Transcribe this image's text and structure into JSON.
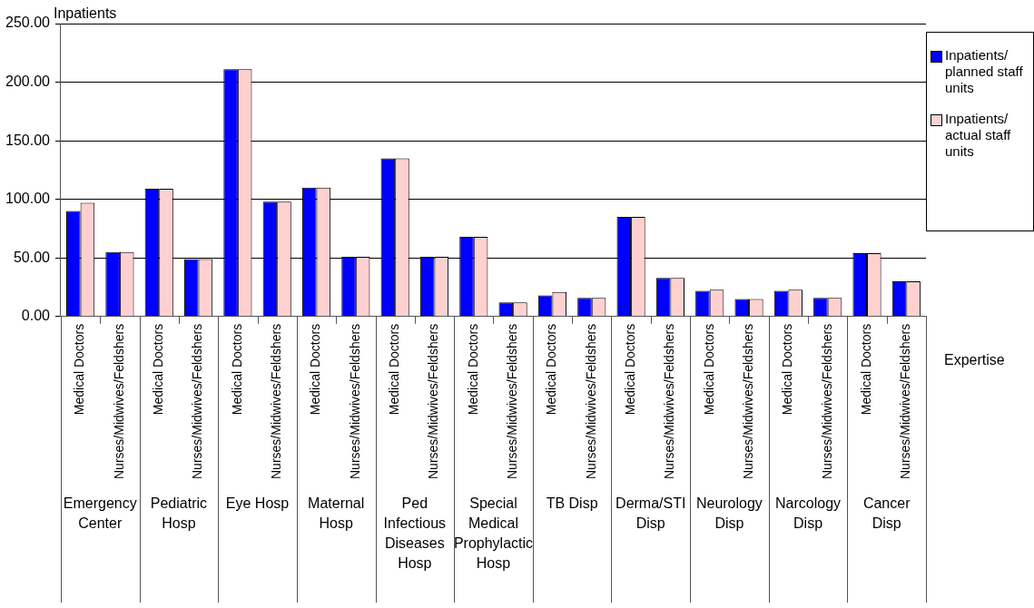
{
  "chart_data": {
    "type": "bar",
    "ylabel": "Inpatients",
    "xlabel": "Expertise",
    "categories": [
      "Medical Doctors",
      "Nurses/Midwives/Feldshers",
      "Medical Doctors",
      "Nurses/Midwives/Feldshers",
      "Medical Doctors",
      "Nurses/Midwives/Feldshers",
      "Medical Doctors",
      "Nurses/Midwives/Feldshers",
      "Medical Doctors",
      "Nurses/Midwives/Feldshers",
      "Medical Doctors",
      "Nurses/Midwives/Feldshers",
      "Medical Doctors",
      "Nurses/Midwives/Feldshers",
      "Medical Doctors",
      "Nurses/Midwives/Feldshers",
      "Medical Doctors",
      "Nurses/Midwives/Feldshers",
      "Medical Doctors",
      "Nurses/Midwives/Feldshers",
      "Medical Doctors",
      "Nurses/Midwives/Feldshers"
    ],
    "annotations": [
      "Emergency Center",
      "Pediatric Hosp",
      "Eye Hosp",
      "Maternal Hosp",
      "Ped Infectious Diseases Hosp",
      "Special Medical Prophylactic Hosp",
      "TB Disp",
      "Derma/STI Disp",
      "Neurology Disp",
      "Narcology Disp",
      "Cancer Disp"
    ],
    "series": [
      {
        "name": "Inpatients/ planned staff units",
        "color": "#0000ff",
        "values": [
          90,
          55,
          109,
          49,
          211,
          98,
          110,
          51,
          135,
          51,
          68,
          12,
          18,
          16,
          85,
          33,
          22,
          15,
          22,
          16,
          54,
          30
        ]
      },
      {
        "name": "Inpatients/ actual staff units",
        "color": "#ffd0d0",
        "values": [
          97,
          55,
          109,
          49,
          211,
          98,
          110,
          51,
          135,
          51,
          68,
          12,
          21,
          16,
          85,
          33,
          23,
          15,
          23,
          16,
          54,
          30
        ]
      }
    ],
    "ylim": [
      0,
      250
    ],
    "yticks": [
      {
        "value": 0,
        "label": "0.00"
      },
      {
        "value": 50,
        "label": "50.00"
      },
      {
        "value": 100,
        "label": "100.00"
      },
      {
        "value": 150,
        "label": "150.00"
      },
      {
        "value": 200,
        "label": "200.00"
      },
      {
        "value": 250,
        "label": "250.00"
      }
    ],
    "grid": "y",
    "legend": "right"
  }
}
